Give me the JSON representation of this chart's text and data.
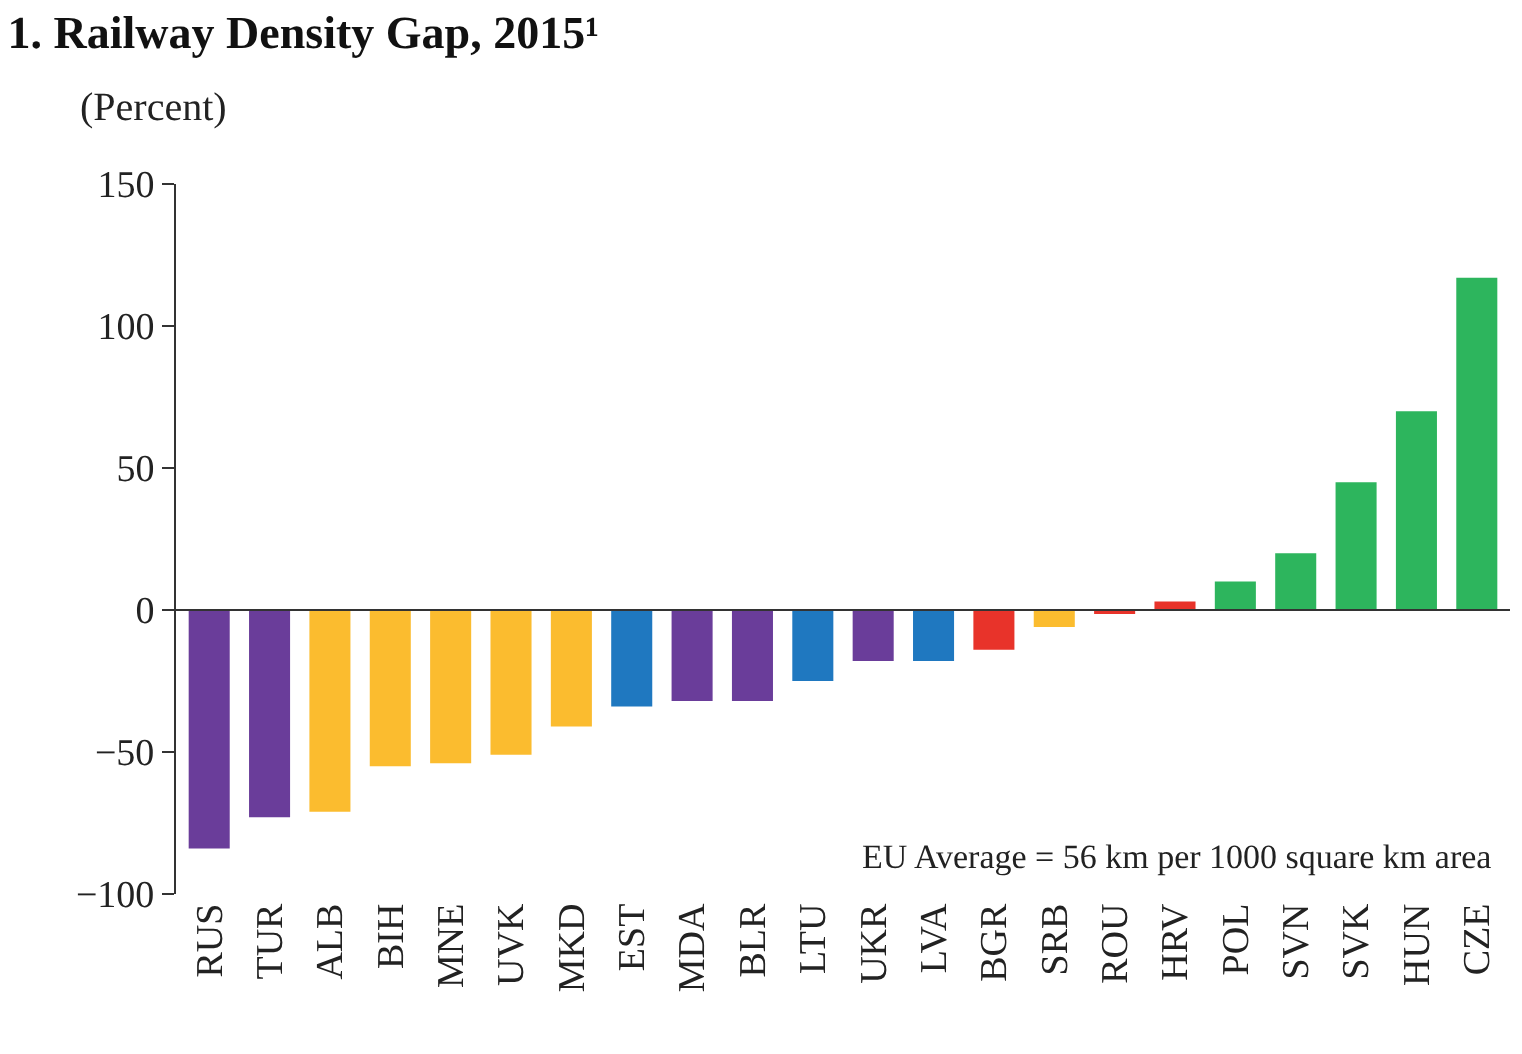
{
  "chart_data": {
    "type": "bar",
    "title": "1. Railway Density Gap, 2015¹",
    "subtitle": "(Percent)",
    "categories": [
      "RUS",
      "TUR",
      "ALB",
      "BIH",
      "MNE",
      "UVK",
      "MKD",
      "EST",
      "MDA",
      "BLR",
      "LTU",
      "UKR",
      "LVA",
      "BGR",
      "SRB",
      "ROU",
      "HRV",
      "POL",
      "SVN",
      "SVK",
      "HUN",
      "CZE"
    ],
    "values": [
      -84,
      -73,
      -71,
      -55,
      -54,
      -51,
      -41,
      -34,
      -32,
      -32,
      -25,
      -18,
      -18,
      -14,
      -6,
      -1,
      3,
      10,
      20,
      45,
      70,
      117
    ],
    "colors": [
      "#6a3d9a",
      "#6a3d9a",
      "#fbbc2f",
      "#fbbc2f",
      "#fbbc2f",
      "#fbbc2f",
      "#fbbc2f",
      "#1f78c0",
      "#6a3d9a",
      "#6a3d9a",
      "#1f78c0",
      "#6a3d9a",
      "#1f78c0",
      "#e8332a",
      "#fbbc2f",
      "#e8332a",
      "#e8332a",
      "#2db55d",
      "#2db55d",
      "#2db55d",
      "#2db55d",
      "#2db55d"
    ],
    "ylim": [
      -100,
      150
    ],
    "yticks": [
      -100,
      -50,
      0,
      50,
      100,
      150
    ],
    "annotations": [
      "EU Average = 56 km per 1000 square km area"
    ]
  }
}
